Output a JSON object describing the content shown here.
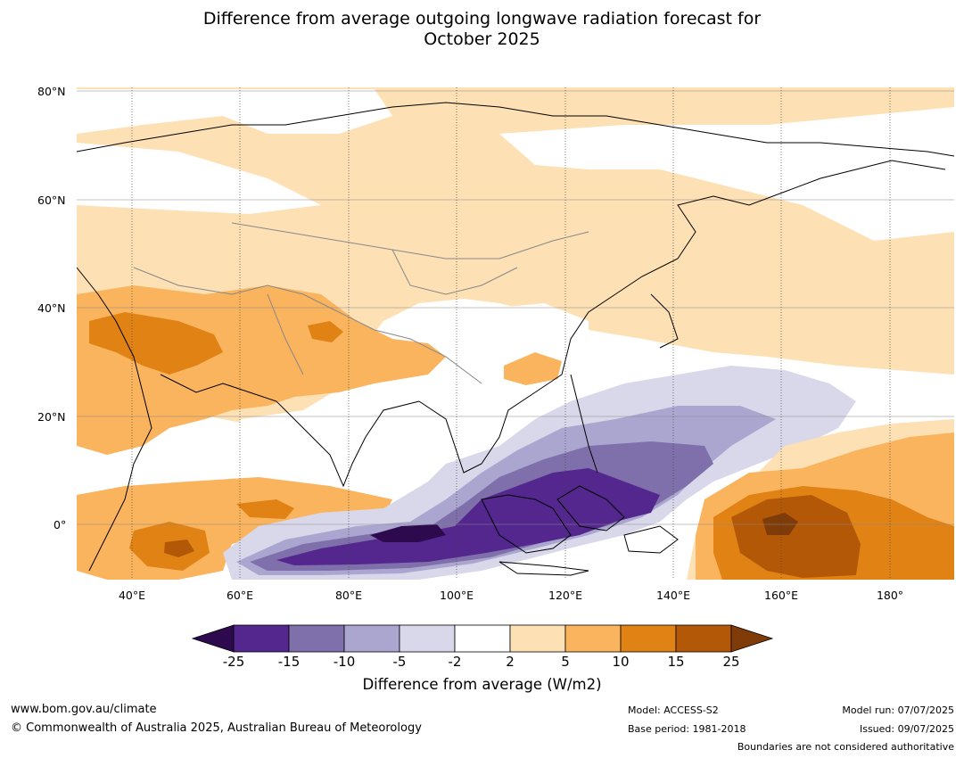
{
  "title_line1": "Difference from average outgoing longwave radiation forecast for",
  "title_line2": "October 2025",
  "latitude_labels": [
    "80°N",
    "60°N",
    "40°N",
    "20°N",
    "0°"
  ],
  "longitude_labels": [
    "40°E",
    "60°E",
    "80°E",
    "100°E",
    "120°E",
    "140°E",
    "160°E",
    "180°"
  ],
  "colorbar": {
    "ticks": [
      "-25",
      "-15",
      "-10",
      "-5",
      "-2",
      "2",
      "5",
      "10",
      "15",
      "25"
    ],
    "colors": [
      "#2d0a4e",
      "#54278f",
      "#7f6fab",
      "#aba6cf",
      "#d9d8ea",
      "#ffffff",
      "#fde0b4",
      "#fbb45e",
      "#e08214",
      "#b35806",
      "#7f3b08"
    ],
    "title": "Difference from average (W/m2)"
  },
  "footer": {
    "website": "www.bom.gov.au/climate",
    "copyright": "© Commonwealth of Australia 2025, Australian Bureau of Meteorology",
    "model": "Model: ACCESS-S2",
    "base_period": "Base period: 1981-2018",
    "model_run": "Model run: 07/07/2025",
    "issued": "Issued: 09/07/2025",
    "disclaimer": "Boundaries are not considered authoritative"
  }
}
